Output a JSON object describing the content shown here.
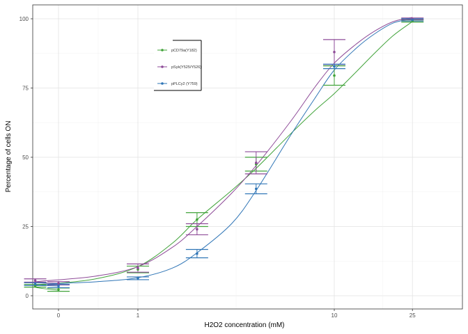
{
  "chart_data": {
    "type": "line",
    "xlabel": "H2O2 concentration (mM)",
    "ylabel": "Percentage of cells ON",
    "x_scale": "log (0 shown at left)",
    "x_ticks": [
      0,
      1,
      10,
      25
    ],
    "y_ticks": [
      0,
      25,
      50,
      75,
      100
    ],
    "ylim": [
      -5,
      105
    ],
    "grid": true,
    "legend_position": "top-left inside",
    "series": [
      {
        "name": "pCD79a(Y182)",
        "color": "#41a33a",
        "points": [
          {
            "x": 0,
            "y": 2.2,
            "err": 0.6
          },
          {
            "x": 0.3,
            "y": 3.6,
            "err": 0.5
          },
          {
            "x": 1,
            "y": 9.5,
            "err": 1.2
          },
          {
            "x": 2,
            "y": 27.5,
            "err": 2.5
          },
          {
            "x": 4,
            "y": 47.5,
            "err": 2.5
          },
          {
            "x": 10,
            "y": 79.5,
            "err": 3.5
          },
          {
            "x": 25,
            "y": 99.2,
            "err": 0.4
          }
        ],
        "curve": [
          [
            0,
            2
          ],
          [
            0.3,
            3.5
          ],
          [
            0.6,
            6
          ],
          [
            1,
            10.5
          ],
          [
            1.5,
            19
          ],
          [
            2,
            27.5
          ],
          [
            3,
            38
          ],
          [
            4,
            46
          ],
          [
            6,
            58.5
          ],
          [
            8,
            67
          ],
          [
            10,
            73
          ],
          [
            13,
            81
          ],
          [
            16,
            87.5
          ],
          [
            20,
            94
          ],
          [
            25,
            99
          ]
        ]
      },
      {
        "name": "pSyk(Y525/Y526)",
        "color": "#8e4b98",
        "points": [
          {
            "x": 0,
            "y": 4.5,
            "err": 0.6
          },
          {
            "x": 0.3,
            "y": 5.5,
            "err": 0.6
          },
          {
            "x": 1,
            "y": 10,
            "err": 1.5
          },
          {
            "x": 2,
            "y": 24,
            "err": 2.0
          },
          {
            "x": 4,
            "y": 48,
            "err": 4.0
          },
          {
            "x": 10,
            "y": 88,
            "err": 4.5
          },
          {
            "x": 25,
            "y": 100,
            "err": 0.3
          }
        ],
        "curve": [
          [
            0,
            4.5
          ],
          [
            0.3,
            5
          ],
          [
            0.6,
            7
          ],
          [
            1,
            10.5
          ],
          [
            1.5,
            17.5
          ],
          [
            2,
            25
          ],
          [
            3,
            37
          ],
          [
            4,
            47
          ],
          [
            6,
            63
          ],
          [
            8,
            75.5
          ],
          [
            10,
            84
          ],
          [
            13,
            91
          ],
          [
            16,
            95.5
          ],
          [
            20,
            99
          ],
          [
            25,
            100.5
          ]
        ]
      },
      {
        "name": "pPLCy2 (Y759)",
        "color": "#2f75b6",
        "points": [
          {
            "x": 0,
            "y": 3.5,
            "err": 0.6
          },
          {
            "x": 0.3,
            "y": 4.2,
            "err": 0.5
          },
          {
            "x": 1,
            "y": 6.3,
            "err": 0.5
          },
          {
            "x": 2,
            "y": 15.2,
            "err": 1.5
          },
          {
            "x": 4,
            "y": 38.6,
            "err": 1.8
          },
          {
            "x": 10,
            "y": 82.8,
            "err": 0.8
          },
          {
            "x": 25,
            "y": 99.6,
            "err": 0.4
          }
        ],
        "curve": [
          [
            0,
            3.5
          ],
          [
            0.3,
            4
          ],
          [
            0.6,
            5
          ],
          [
            1,
            6.5
          ],
          [
            1.5,
            10
          ],
          [
            2,
            15.5
          ],
          [
            3,
            26
          ],
          [
            4,
            38
          ],
          [
            6,
            58
          ],
          [
            8,
            71.5
          ],
          [
            10,
            81.5
          ],
          [
            13,
            89.5
          ],
          [
            16,
            94.5
          ],
          [
            20,
            98.5
          ],
          [
            25,
            100
          ]
        ]
      }
    ]
  }
}
